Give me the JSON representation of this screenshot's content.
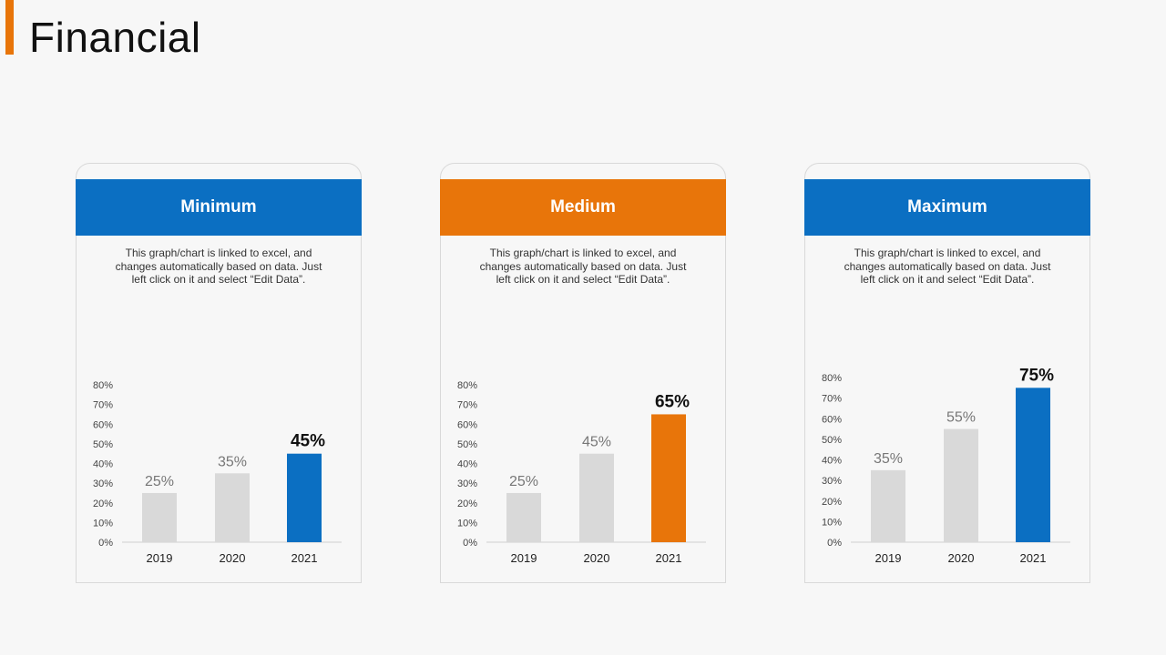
{
  "page": {
    "title": "Financial"
  },
  "colors": {
    "blue": "#0b6fc2",
    "orange": "#e8750a",
    "gray": "#d9d9d9",
    "axis": "#cfcfcf"
  },
  "cards": [
    {
      "title": "Minimum",
      "header_color": "#0b6fc2",
      "description": "This graph/chart is linked to excel, and changes automatically based on data. Just left click on it and select “Edit Data”."
    },
    {
      "title": "Medium",
      "header_color": "#e8750a",
      "description": "This graph/chart is linked to excel, and changes automatically based on data. Just left click on it and select “Edit Data”."
    },
    {
      "title": "Maximum",
      "header_color": "#0b6fc2",
      "description": "This graph/chart is linked to excel, and changes automatically based on data. Just left click on it and select “Edit Data”."
    }
  ],
  "chart_data": [
    {
      "type": "bar",
      "title": "Minimum",
      "categories": [
        "2019",
        "2020",
        "2021"
      ],
      "values": [
        25,
        35,
        45
      ],
      "value_labels": [
        "25%",
        "35%",
        "45%"
      ],
      "highlight_index": 2,
      "highlight_color": "#0b6fc2",
      "ylim": [
        0,
        80
      ],
      "yticks": [
        "0%",
        "10%",
        "20%",
        "30%",
        "40%",
        "50%",
        "60%",
        "70%",
        "80%"
      ],
      "grid": false
    },
    {
      "type": "bar",
      "title": "Medium",
      "categories": [
        "2019",
        "2020",
        "2021"
      ],
      "values": [
        25,
        45,
        65
      ],
      "value_labels": [
        "25%",
        "45%",
        "65%"
      ],
      "highlight_index": 2,
      "highlight_color": "#e8750a",
      "ylim": [
        0,
        80
      ],
      "yticks": [
        "0%",
        "10%",
        "20%",
        "30%",
        "40%",
        "50%",
        "60%",
        "70%",
        "80%"
      ],
      "grid": false
    },
    {
      "type": "bar",
      "title": "Maximum",
      "categories": [
        "2019",
        "2020",
        "2021"
      ],
      "values": [
        35,
        55,
        75
      ],
      "value_labels": [
        "35%",
        "55%",
        "75%"
      ],
      "highlight_index": 2,
      "highlight_color": "#0b6fc2",
      "ylim": [
        0,
        80
      ],
      "yticks": [
        "0%",
        "10%",
        "20%",
        "30%",
        "40%",
        "50%",
        "60%",
        "70%",
        "80%"
      ],
      "grid": false
    }
  ]
}
